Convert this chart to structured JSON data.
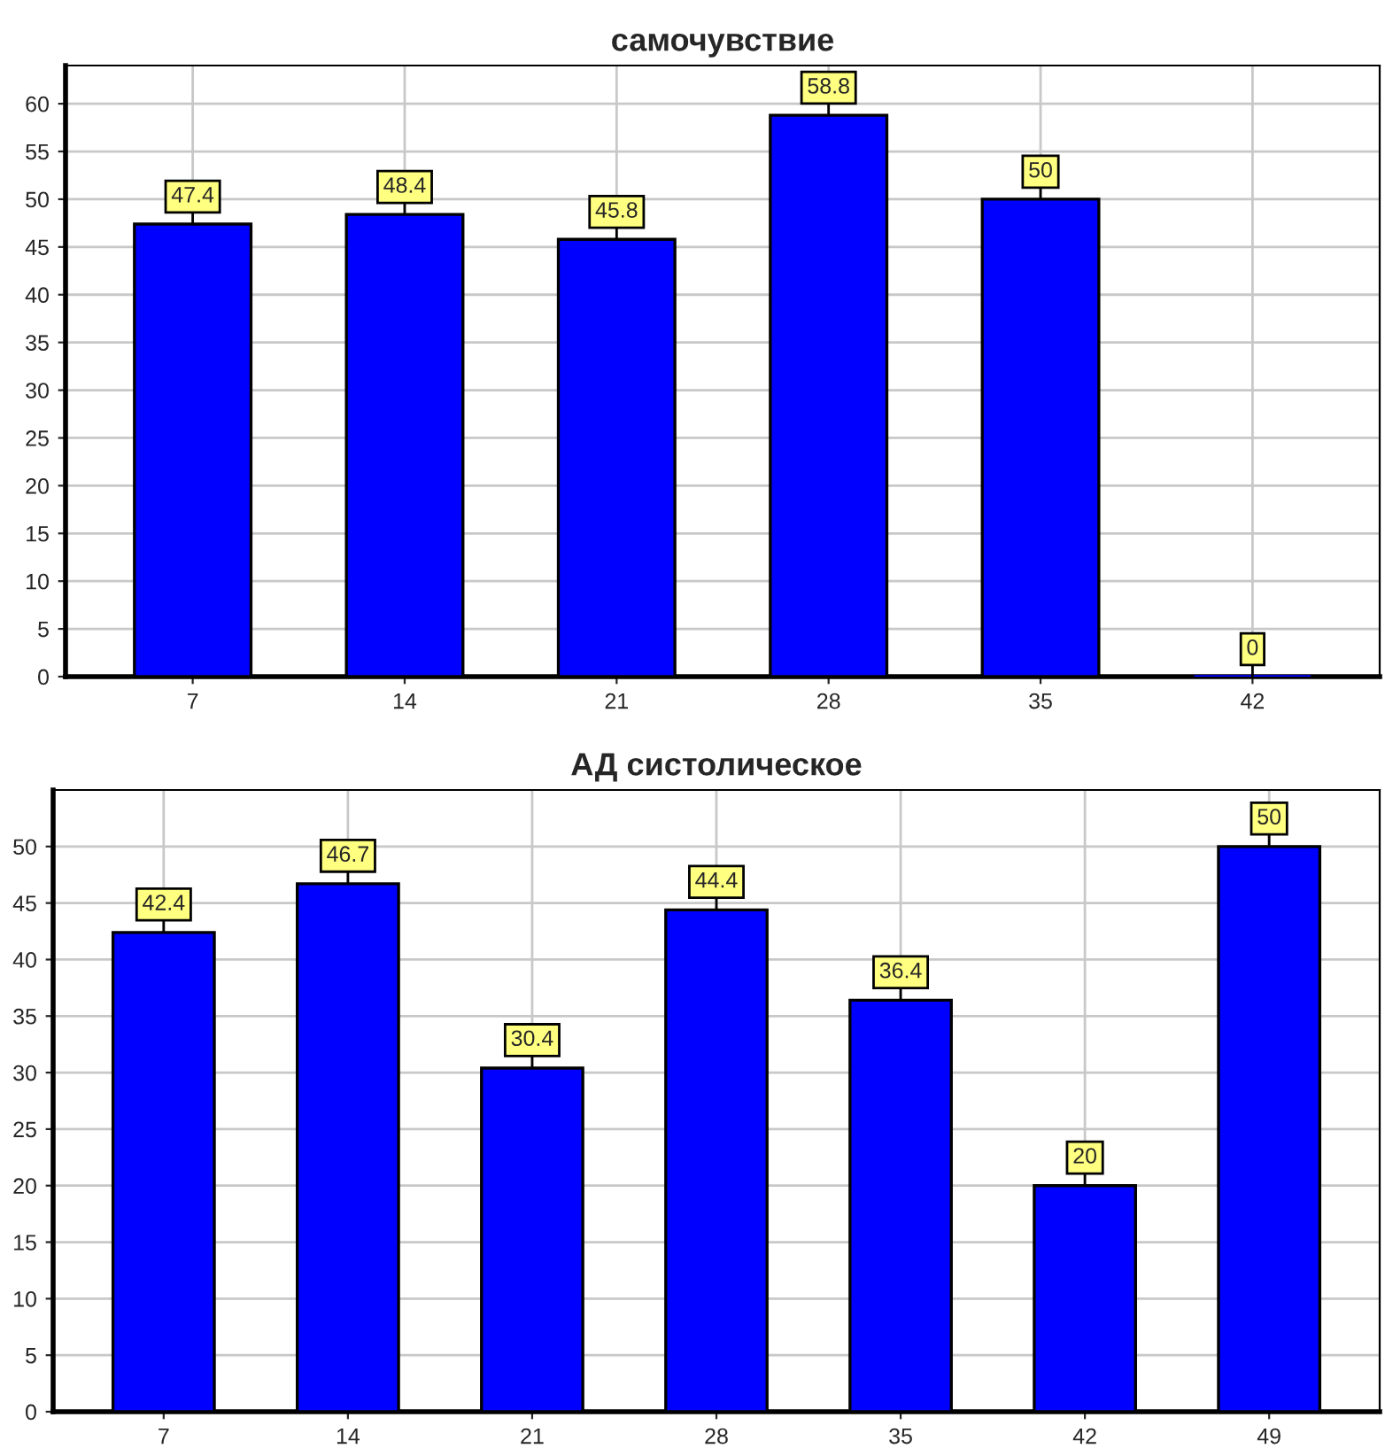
{
  "chart_data": [
    {
      "type": "bar",
      "title": "самочувствие",
      "categories": [
        "7",
        "14",
        "21",
        "28",
        "35",
        "42"
      ],
      "values": [
        47.4,
        48.4,
        45.8,
        58.8,
        50,
        0
      ],
      "color": "#0000ff",
      "ylim": [
        0,
        64
      ],
      "yticks": [
        0,
        5,
        10,
        15,
        20,
        25,
        30,
        35,
        40,
        45,
        50,
        55,
        60
      ],
      "grid": true,
      "data_labels": true
    },
    {
      "type": "bar",
      "title": "АД систолическое",
      "categories": [
        "7",
        "14",
        "21",
        "28",
        "35",
        "42",
        "49"
      ],
      "values": [
        42.4,
        46.7,
        30.4,
        44.4,
        36.4,
        20,
        50
      ],
      "color": "#0000ff",
      "ylim": [
        0,
        55
      ],
      "yticks": [
        0,
        5,
        10,
        15,
        20,
        25,
        30,
        35,
        40,
        45,
        50
      ],
      "grid": true,
      "data_labels": true
    }
  ]
}
